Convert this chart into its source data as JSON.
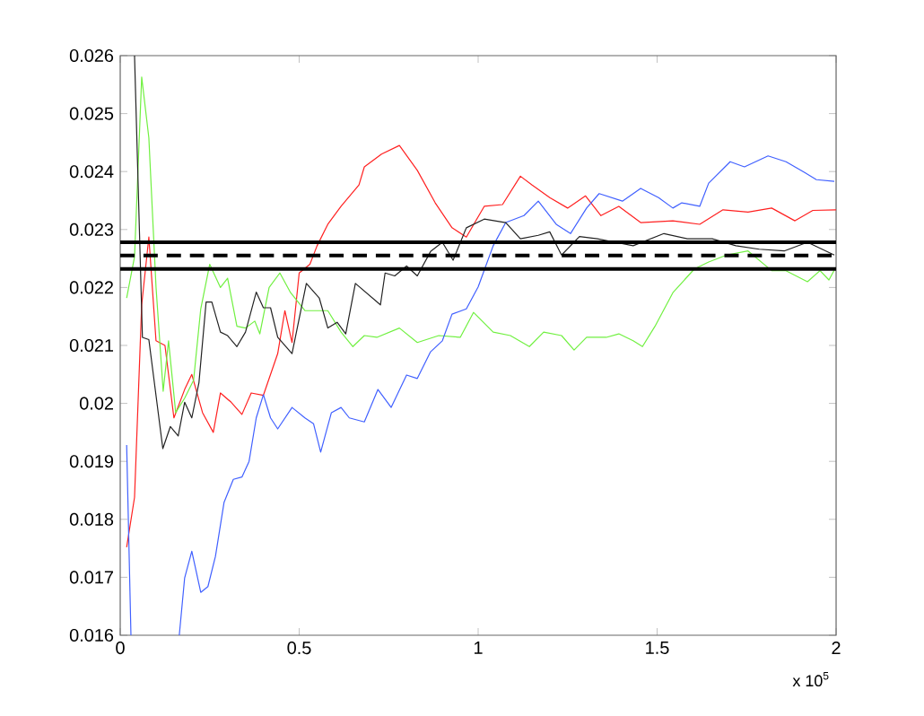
{
  "chart_data": {
    "type": "line",
    "xlim": [
      0,
      2
    ],
    "ylim": [
      0.016,
      0.026
    ],
    "xticks": [
      0,
      0.5,
      1,
      1.5,
      2
    ],
    "yticks": [
      0.016,
      0.017,
      0.018,
      0.019,
      0.02,
      0.021,
      0.022,
      0.023,
      0.024,
      0.025,
      0.026
    ],
    "annotations": [
      "x 10$^{5}$"
    ],
    "marker": "none",
    "line_style": "solid",
    "ref_lines": [
      {
        "axis": "y",
        "value": 0.02278,
        "line_style": "solid",
        "color": "#000000"
      },
      {
        "axis": "y",
        "value": 0.02255,
        "line_style": "dashed",
        "color": "#000000"
      },
      {
        "axis": "y",
        "value": 0.02232,
        "line_style": "solid",
        "color": "#000000"
      }
    ],
    "series": [
      {
        "color": "#ff2020",
        "x": [
          0.018,
          0.04,
          0.06,
          0.08,
          0.1,
          0.125,
          0.15,
          0.18,
          0.2,
          0.23,
          0.26,
          0.28,
          0.31,
          0.34,
          0.366,
          0.4,
          0.44,
          0.46,
          0.48,
          0.5,
          0.53,
          0.55,
          0.58,
          0.617,
          0.667,
          0.682,
          0.73,
          0.78,
          0.83,
          0.88,
          0.927,
          0.967,
          1.017,
          1.068,
          1.118,
          1.15,
          1.2,
          1.25,
          1.3,
          1.343,
          1.393,
          1.454,
          1.544,
          1.619,
          1.684,
          1.754,
          1.82,
          1.885,
          1.935,
          2.0
        ],
        "values": [
          0.01752,
          0.01838,
          0.0217,
          0.02287,
          0.02108,
          0.021,
          0.01975,
          0.02024,
          0.0205,
          0.01984,
          0.0195,
          0.02018,
          0.02002,
          0.01981,
          0.02018,
          0.02014,
          0.02086,
          0.0216,
          0.02105,
          0.02225,
          0.0224,
          0.02272,
          0.02309,
          0.0234,
          0.02377,
          0.02408,
          0.0243,
          0.02445,
          0.02402,
          0.02346,
          0.02303,
          0.02287,
          0.0234,
          0.02343,
          0.02392,
          0.02377,
          0.02355,
          0.02337,
          0.02358,
          0.02324,
          0.0234,
          0.02312,
          0.02315,
          0.02309,
          0.02334,
          0.0233,
          0.02337,
          0.02315,
          0.02333,
          0.02334
        ]
      },
      {
        "color": "#70f040",
        "x": [
          0.018,
          0.04,
          0.06,
          0.08,
          0.1,
          0.12,
          0.135,
          0.155,
          0.18,
          0.205,
          0.225,
          0.25,
          0.28,
          0.3,
          0.326,
          0.35,
          0.376,
          0.39,
          0.416,
          0.446,
          0.476,
          0.516,
          0.58,
          0.617,
          0.65,
          0.682,
          0.717,
          0.78,
          0.83,
          0.89,
          0.95,
          0.987,
          1.042,
          1.09,
          1.143,
          1.183,
          1.233,
          1.268,
          1.303,
          1.358,
          1.393,
          1.433,
          1.459,
          1.494,
          1.544,
          1.604,
          1.644,
          1.694,
          1.754,
          1.82,
          1.86,
          1.92,
          1.955,
          1.98,
          1.995
        ],
        "values": [
          0.02182,
          0.02253,
          0.02563,
          0.02458,
          0.02201,
          0.02021,
          0.02108,
          0.01984,
          0.02009,
          0.0204,
          0.02163,
          0.0224,
          0.022,
          0.02216,
          0.02133,
          0.0213,
          0.02142,
          0.0212,
          0.022,
          0.02225,
          0.02191,
          0.0216,
          0.0216,
          0.02123,
          0.02098,
          0.02117,
          0.02114,
          0.0213,
          0.02105,
          0.02117,
          0.02114,
          0.02157,
          0.02123,
          0.02117,
          0.02098,
          0.02123,
          0.02117,
          0.02092,
          0.02114,
          0.02114,
          0.0212,
          0.02108,
          0.02098,
          0.02133,
          0.02191,
          0.02232,
          0.02244,
          0.02256,
          0.02263,
          0.02229,
          0.02229,
          0.0221,
          0.02229,
          0.02213,
          0.0223
        ]
      },
      {
        "color": "#4060ff",
        "x": [
          0.018,
          0.03,
          0.1,
          0.165,
          0.18,
          0.2,
          0.225,
          0.245,
          0.266,
          0.29,
          0.316,
          0.34,
          0.36,
          0.38,
          0.4,
          0.42,
          0.44,
          0.48,
          0.516,
          0.54,
          0.56,
          0.59,
          0.617,
          0.64,
          0.682,
          0.72,
          0.757,
          0.8,
          0.83,
          0.867,
          0.9,
          0.927,
          0.967,
          1.0,
          1.042,
          1.077,
          1.128,
          1.168,
          1.218,
          1.258,
          1.303,
          1.338,
          1.403,
          1.454,
          1.504,
          1.544,
          1.569,
          1.619,
          1.644,
          1.704,
          1.744,
          1.81,
          1.86,
          1.91,
          1.945,
          1.995
        ],
        "values": [
          0.01928,
          0.016,
          null,
          0.016,
          0.01699,
          0.01745,
          0.01674,
          0.01684,
          0.01736,
          0.01829,
          0.01869,
          0.01873,
          0.019,
          0.01975,
          0.02015,
          0.01975,
          0.01956,
          0.01993,
          0.01975,
          0.01965,
          0.01916,
          0.01984,
          0.01993,
          0.01975,
          0.01968,
          0.02024,
          0.01993,
          0.02049,
          0.02043,
          0.02089,
          0.02108,
          0.02154,
          0.02163,
          0.02201,
          0.02272,
          0.02312,
          0.02324,
          0.02349,
          0.02309,
          0.02293,
          0.02337,
          0.02362,
          0.02349,
          0.02371,
          0.02355,
          0.02337,
          0.02346,
          0.0234,
          0.0238,
          0.02417,
          0.02408,
          0.02427,
          0.02417,
          0.02399,
          0.02386,
          0.02383
        ]
      },
      {
        "color": "#222222",
        "x": [
          0.04,
          0.062,
          0.08,
          0.119,
          0.14,
          0.162,
          0.18,
          0.2,
          0.22,
          0.24,
          0.256,
          0.28,
          0.3,
          0.326,
          0.35,
          0.38,
          0.4,
          0.42,
          0.44,
          0.48,
          0.52,
          0.556,
          0.58,
          0.606,
          0.63,
          0.657,
          0.727,
          0.74,
          0.767,
          0.8,
          0.83,
          0.867,
          0.9,
          0.93,
          0.967,
          1.017,
          1.077,
          1.118,
          1.168,
          1.2,
          1.233,
          1.283,
          1.333,
          1.383,
          1.433,
          1.519,
          1.584,
          1.654,
          1.72,
          1.785,
          1.855,
          1.92,
          1.995
        ],
        "values": [
          0.026,
          0.02114,
          0.0211,
          0.01922,
          0.0196,
          0.01944,
          0.02002,
          0.01975,
          0.02036,
          0.02175,
          0.02175,
          0.02123,
          0.02117,
          0.02098,
          0.02123,
          0.02192,
          0.02165,
          0.02165,
          0.02114,
          0.02086,
          0.02207,
          0.02182,
          0.0213,
          0.0214,
          0.0212,
          0.02207,
          0.0217,
          0.02225,
          0.0222,
          0.02237,
          0.0222,
          0.02262,
          0.02278,
          0.02247,
          0.02303,
          0.02318,
          0.02312,
          0.02284,
          0.0229,
          0.02296,
          0.02256,
          0.02288,
          0.02284,
          0.02278,
          0.02272,
          0.02293,
          0.02284,
          0.02284,
          0.02272,
          0.02266,
          0.02263,
          0.02278,
          0.02256
        ]
      }
    ]
  }
}
